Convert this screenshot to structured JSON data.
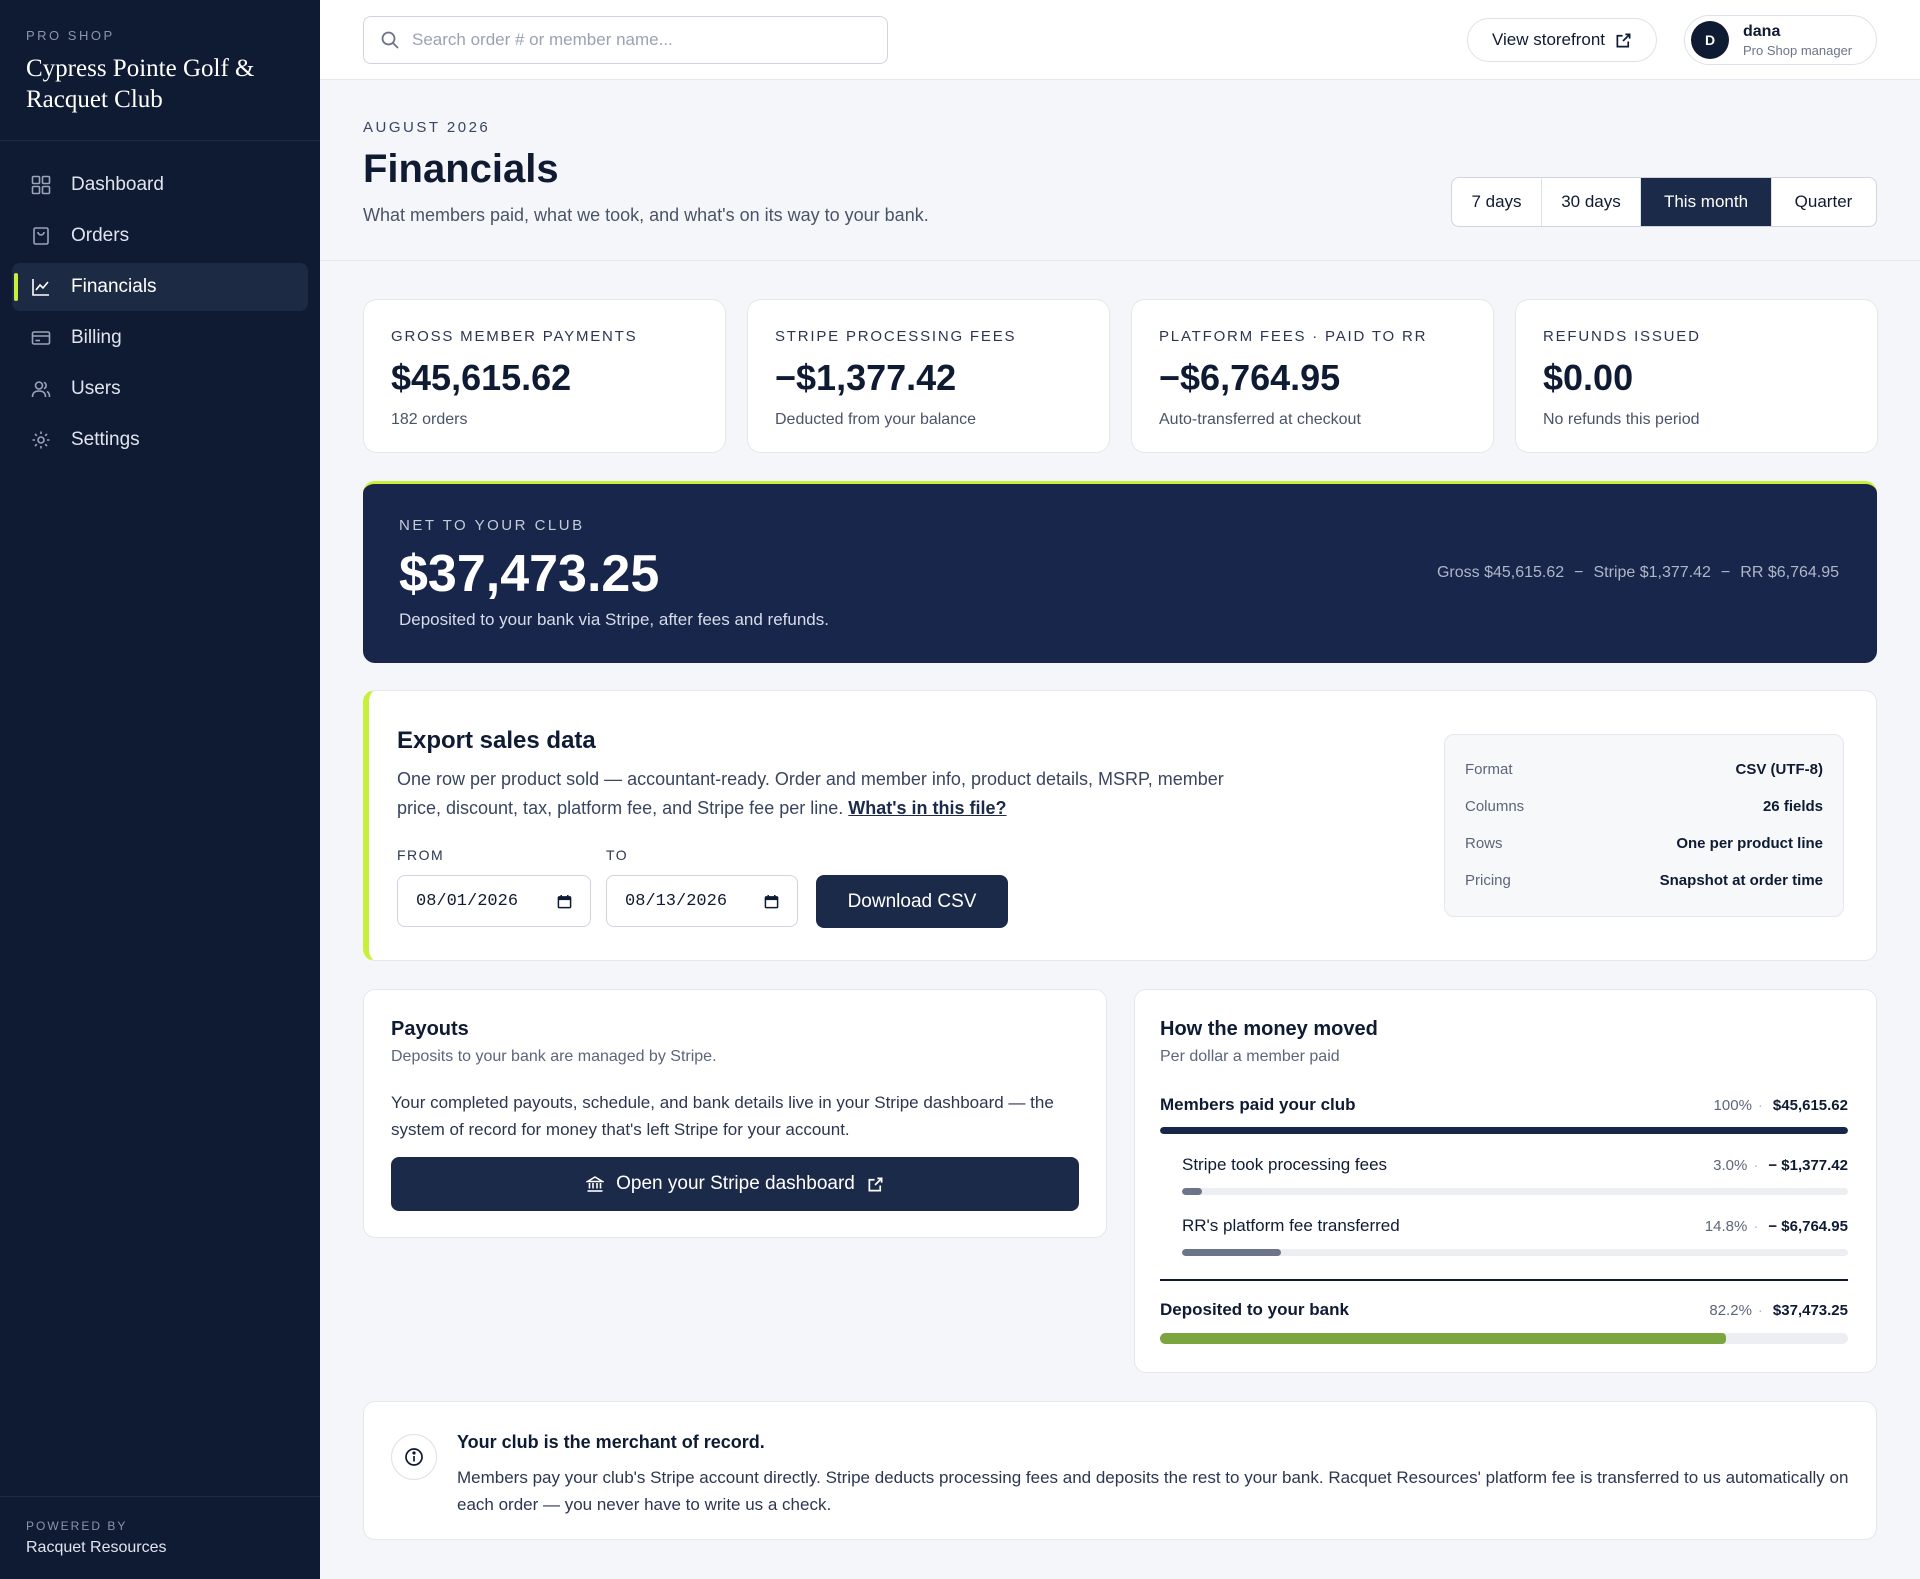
{
  "sidebar": {
    "kicker": "PRO SHOP",
    "club_name": "Cypress Pointe Golf & Racquet Club",
    "items": [
      {
        "label": "Dashboard",
        "icon": "grid-icon"
      },
      {
        "label": "Orders",
        "icon": "bag-icon"
      },
      {
        "label": "Financials",
        "icon": "chart-icon",
        "active": true
      },
      {
        "label": "Billing",
        "icon": "card-icon"
      },
      {
        "label": "Users",
        "icon": "users-icon"
      },
      {
        "label": "Settings",
        "icon": "gear-icon"
      }
    ],
    "footer_kicker": "POWERED BY",
    "footer_name": "Racquet Resources"
  },
  "topbar": {
    "search_placeholder": "Search order # or member name...",
    "storefront_label": "View storefront",
    "user_initial": "D",
    "user_name": "dana",
    "user_role": "Pro Shop manager"
  },
  "header": {
    "kicker": "AUGUST 2026",
    "title": "Financials",
    "subtitle": "What members paid, what we took, and what's on its way to your bank.",
    "ranges": [
      "7 days",
      "30 days",
      "This month",
      "Quarter"
    ],
    "active_range": "This month"
  },
  "kpis": [
    {
      "label": "GROSS MEMBER PAYMENTS",
      "value": "$45,615.62",
      "sub": "182 orders"
    },
    {
      "label": "STRIPE PROCESSING FEES",
      "value": "−$1,377.42",
      "sub": "Deducted from your balance"
    },
    {
      "label": "PLATFORM FEES · PAID TO RR",
      "value": "−$6,764.95",
      "sub": "Auto-transferred at checkout"
    },
    {
      "label": "REFUNDS ISSUED",
      "value": "$0.00",
      "sub": "No refunds this period"
    }
  ],
  "net": {
    "kicker": "NET TO YOUR CLUB",
    "value": "$37,473.25",
    "sub": "Deposited to your bank via Stripe, after fees and refunds.",
    "gross": "Gross $45,615.62",
    "stripe": "Stripe $1,377.42",
    "rr": "RR $6,764.95",
    "sep": "−"
  },
  "export": {
    "title": "Export sales data",
    "desc": "One row per product sold — accountant-ready. Order and member info, product details, MSRP, member price, discount, tax, platform fee, and Stripe fee per line.",
    "link": "What's in this file?",
    "from_label": "FROM",
    "to_label": "TO",
    "from_value": "08/01/2026",
    "to_value": "08/13/2026",
    "download_label": "Download CSV",
    "spec": [
      {
        "k": "Format",
        "v": "CSV (UTF-8)"
      },
      {
        "k": "Columns",
        "v": "26 fields"
      },
      {
        "k": "Rows",
        "v": "One per product line"
      },
      {
        "k": "Pricing",
        "v": "Snapshot at order time"
      }
    ]
  },
  "payouts": {
    "title": "Payouts",
    "sub": "Deposits to your bank are managed by Stripe.",
    "body": "Your completed payouts, schedule, and bank details live in your Stripe dashboard — the system of record for money that's left Stripe for your account.",
    "button": "Open your Stripe dashboard"
  },
  "money": {
    "title": "How the money moved",
    "sub": "Per dollar a member paid",
    "dot": "·",
    "rows": [
      {
        "label": "Members paid your club",
        "pct": "100%",
        "amount": "$45,615.62",
        "fraction": 1.0,
        "color": "#17264a"
      },
      {
        "label": "Stripe took processing fees",
        "pct": "3.0%",
        "amount": "− $1,377.42",
        "fraction": 0.03,
        "color": "#6b7488"
      },
      {
        "label": "RR's platform fee transferred",
        "pct": "14.8%",
        "amount": "− $6,764.95",
        "fraction": 0.148,
        "color": "#6b7488"
      },
      {
        "label": "Deposited to your bank",
        "pct": "82.2%",
        "amount": "$37,473.25",
        "fraction": 0.822,
        "color": "#7aa53f"
      }
    ]
  },
  "info": {
    "title": "Your club is the merchant of record.",
    "body": "Members pay your club's Stripe account directly. Stripe deducts processing fees and deposits the rest to your bank. Racquet Resources' platform fee is transferred to us automatically on each order — you never have to write us a check."
  },
  "colors": {
    "accent": "#c8ef3a",
    "navy": "#0f1b33",
    "navy_button": "#1c2a4a",
    "green": "#7aa53f"
  }
}
